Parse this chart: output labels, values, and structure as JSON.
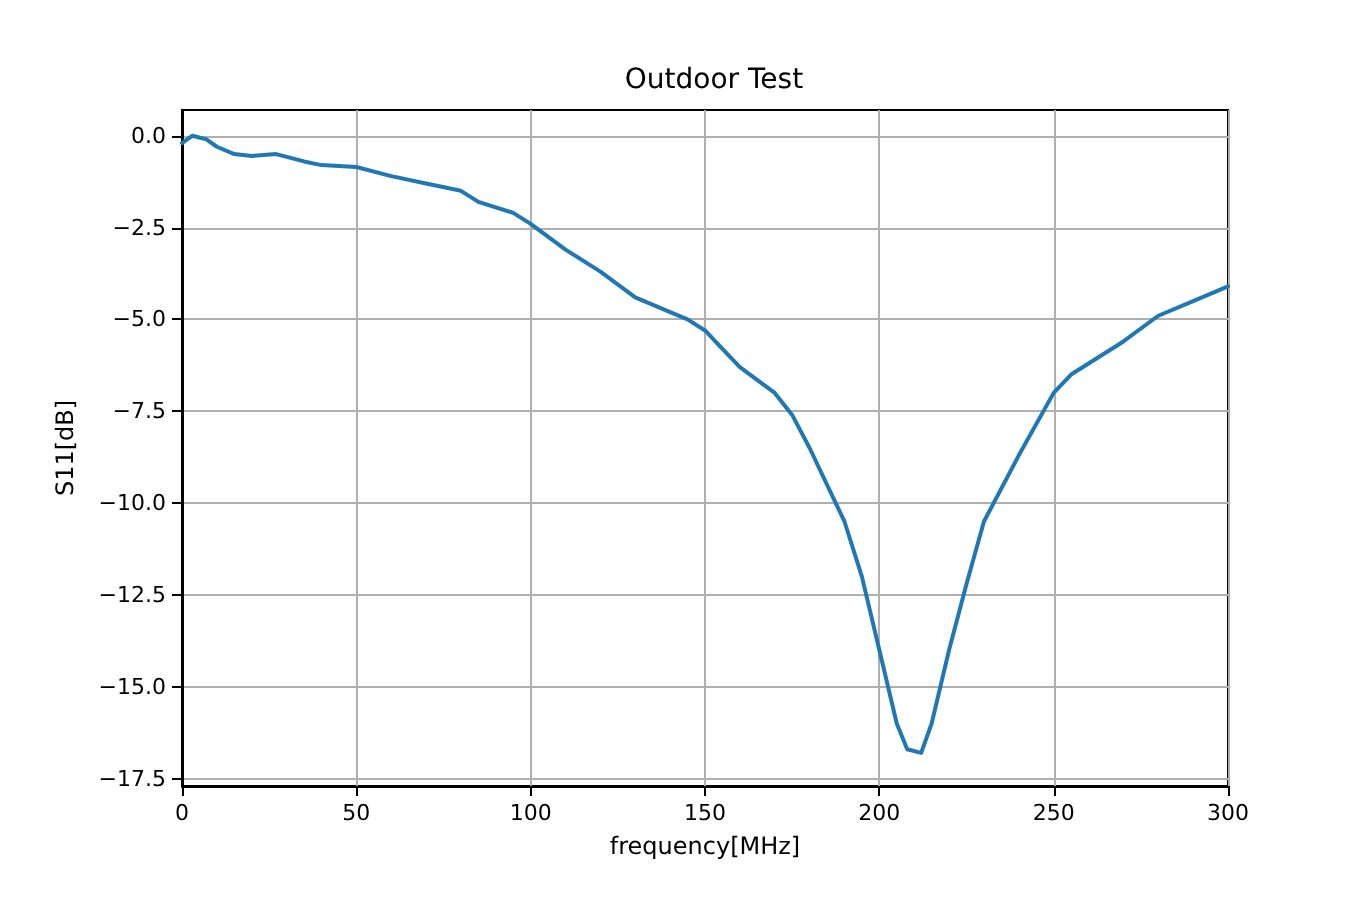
{
  "chart_data": {
    "type": "line",
    "title": "Outdoor Test",
    "xlabel": "frequency[MHz]",
    "ylabel": "S11[dB]",
    "x": [
      0,
      3,
      7,
      10,
      15,
      20,
      27,
      35,
      40,
      50,
      60,
      70,
      80,
      85,
      95,
      100,
      110,
      120,
      130,
      140,
      145,
      150,
      155,
      160,
      170,
      175,
      180,
      190,
      195,
      200,
      205,
      208,
      212,
      215,
      220,
      225,
      230,
      240,
      250,
      255,
      260,
      270,
      280,
      290,
      300
    ],
    "series": [
      {
        "color": "#1f77b4",
        "values": [
          -0.2,
          0,
          -0.1,
          -0.3,
          -0.5,
          -0.55,
          -0.5,
          -0.7,
          -0.8,
          -0.85,
          -1.1,
          -1.3,
          -1.5,
          -1.8,
          -2.1,
          -2.4,
          -3.1,
          -3.7,
          -4.4,
          -4.8,
          -5.0,
          -5.3,
          -5.8,
          -6.3,
          -7.0,
          -7.6,
          -8.5,
          -10.5,
          -12.0,
          -14.0,
          -16.0,
          -16.7,
          -16.8,
          -16.0,
          -14.0,
          -12.2,
          -10.5,
          -8.7,
          -7.0,
          -6.5,
          -6.2,
          -5.6,
          -4.9,
          -4.5,
          -4.1
        ]
      }
    ],
    "xlim": [
      0,
      300
    ],
    "xticks": [
      0,
      50,
      100,
      150,
      200,
      250,
      300
    ],
    "ylim": [
      -17.7,
      0.7
    ],
    "yticks": [
      {
        "value": 0,
        "label": "0.0"
      },
      {
        "value": -2.5,
        "label": "−2.5"
      },
      {
        "value": -5,
        "label": "−5.0"
      },
      {
        "value": -7.5,
        "label": "−7.5"
      },
      {
        "value": -10,
        "label": "−10.0"
      },
      {
        "value": -12.5,
        "label": "−12.5"
      },
      {
        "value": -15,
        "label": "−15.0"
      },
      {
        "value": -17.5,
        "label": "−17.5"
      }
    ],
    "grid": true,
    "line_style": "solid"
  }
}
